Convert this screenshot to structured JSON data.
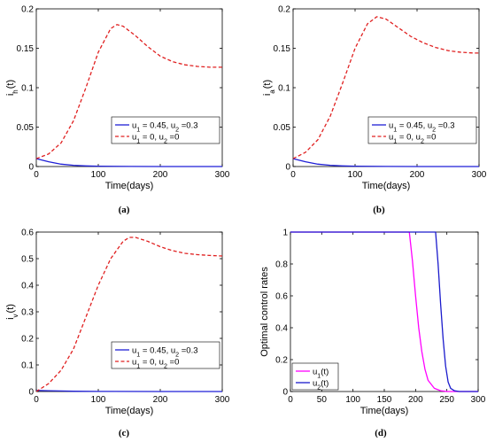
{
  "colors": {
    "controlled": "#1f1fd6",
    "uncontrolled": "#e02020",
    "u1": "#ff00ff",
    "u2": "#1a1acc",
    "axis": "#000000"
  },
  "chart_data": [
    {
      "id": "a",
      "caption": "(a)",
      "type": "line",
      "ylabel_main": "i",
      "ylabel_sub": "h",
      "ylabel_tail": "(t)",
      "xlabel": "Time(days)",
      "xlim": [
        0,
        300
      ],
      "ylim": [
        0,
        0.2
      ],
      "xticks": [
        0,
        100,
        200,
        300
      ],
      "yticks": [
        0,
        0.05,
        0.1,
        0.15,
        0.2
      ],
      "ytick_labels": [
        "0",
        "0.05",
        "0.1",
        "0.15",
        "0.2"
      ],
      "legend_position": "lower-right",
      "series": [
        {
          "label": "u₁ = 0.45, u₂ =0.3",
          "legend_text": "u_1 = 0.45, u_2 =0.3",
          "color": "#1f1fd6",
          "dash": "solid",
          "x": [
            0,
            20,
            40,
            60,
            80,
            100,
            150,
            200,
            300
          ],
          "y": [
            0.01,
            0.006,
            0.003,
            0.0015,
            0.0008,
            0.0004,
            0.0001,
            0,
            0
          ]
        },
        {
          "label": "u₁ = 0, u₂ =0",
          "legend_text": "u_1 = 0, u_2 =0",
          "color": "#e02020",
          "dash": "dashed",
          "x": [
            0,
            20,
            40,
            60,
            80,
            100,
            120,
            130,
            140,
            160,
            180,
            200,
            220,
            240,
            260,
            280,
            300
          ],
          "y": [
            0.01,
            0.016,
            0.03,
            0.058,
            0.1,
            0.145,
            0.175,
            0.18,
            0.178,
            0.166,
            0.152,
            0.14,
            0.133,
            0.129,
            0.127,
            0.126,
            0.126
          ]
        }
      ]
    },
    {
      "id": "b",
      "caption": "(b)",
      "type": "line",
      "ylabel_main": "i",
      "ylabel_sub": "a",
      "ylabel_tail": "(t)",
      "xlabel": "Time(days)",
      "xlim": [
        0,
        300
      ],
      "ylim": [
        0,
        0.2
      ],
      "xticks": [
        0,
        100,
        200,
        300
      ],
      "yticks": [
        0,
        0.05,
        0.1,
        0.15,
        0.2
      ],
      "ytick_labels": [
        "0",
        "0.05",
        "0.1",
        "0.15",
        "0.2"
      ],
      "legend_position": "lower-right",
      "series": [
        {
          "label": "u₁ = 0.45, u₂ =0.3",
          "legend_text": "u_1 = 0.45, u_2 =0.3",
          "color": "#1f1fd6",
          "dash": "solid",
          "x": [
            0,
            20,
            40,
            60,
            80,
            100,
            150,
            200,
            300
          ],
          "y": [
            0.01,
            0.006,
            0.003,
            0.0015,
            0.0008,
            0.0004,
            0.0001,
            0,
            0
          ]
        },
        {
          "label": "u₁ = 0, u₂ =0",
          "legend_text": "u_1 = 0, u_2 =0",
          "color": "#e02020",
          "dash": "dashed",
          "x": [
            0,
            20,
            40,
            60,
            80,
            100,
            120,
            135,
            150,
            170,
            190,
            210,
            230,
            250,
            270,
            290,
            300
          ],
          "y": [
            0.01,
            0.018,
            0.034,
            0.064,
            0.106,
            0.15,
            0.181,
            0.19,
            0.187,
            0.176,
            0.165,
            0.157,
            0.151,
            0.147,
            0.145,
            0.144,
            0.144
          ]
        }
      ]
    },
    {
      "id": "c",
      "caption": "(c)",
      "type": "line",
      "ylabel_main": "i",
      "ylabel_sub": "v",
      "ylabel_tail": "(t)",
      "xlabel": "Time(days)",
      "xlim": [
        0,
        300
      ],
      "ylim": [
        0,
        0.6
      ],
      "xticks": [
        0,
        100,
        200,
        300
      ],
      "yticks": [
        0,
        0.1,
        0.2,
        0.3,
        0.4,
        0.5,
        0.6
      ],
      "ytick_labels": [
        "0",
        "0.1",
        "0.2",
        "0.3",
        "0.4",
        "0.5",
        "0.6"
      ],
      "legend_position": "lower-right",
      "series": [
        {
          "label": "u₁ = 0.45, u₂ =0.3",
          "legend_text": "u_1 = 0.45, u_2 =0.3",
          "color": "#1f1fd6",
          "dash": "solid",
          "x": [
            0,
            20,
            40,
            60,
            100,
            200,
            300
          ],
          "y": [
            0.004,
            0.003,
            0.002,
            0.001,
            0.0005,
            0,
            0
          ]
        },
        {
          "label": "u₁ = 0, u₂ =0",
          "legend_text": "u_1 = 0, u_2 =0",
          "color": "#e02020",
          "dash": "dashed",
          "x": [
            0,
            20,
            40,
            60,
            80,
            100,
            120,
            140,
            150,
            160,
            180,
            200,
            220,
            240,
            260,
            280,
            300
          ],
          "y": [
            0.0,
            0.03,
            0.08,
            0.16,
            0.28,
            0.4,
            0.5,
            0.565,
            0.58,
            0.58,
            0.565,
            0.545,
            0.53,
            0.52,
            0.515,
            0.512,
            0.51
          ]
        }
      ]
    },
    {
      "id": "d",
      "caption": "(d)",
      "type": "line",
      "ylabel": "Optimal control rates",
      "xlabel": "Time(days)",
      "xlim": [
        0,
        300
      ],
      "ylim": [
        0,
        1
      ],
      "xticks": [
        0,
        50,
        100,
        150,
        200,
        250,
        300
      ],
      "yticks": [
        0,
        0.2,
        0.4,
        0.6,
        0.8,
        1
      ],
      "ytick_labels": [
        "0",
        "0.2",
        "0.4",
        "0.6",
        "0.8",
        "1"
      ],
      "legend_position": "lower-left",
      "series": [
        {
          "label": "u₁(t)",
          "legend_text": "u_1(t)",
          "color": "#ff00ff",
          "dash": "solid",
          "x": [
            0,
            190,
            195,
            200,
            205,
            210,
            215,
            220,
            230,
            240,
            250,
            300
          ],
          "y": [
            1,
            1,
            0.82,
            0.6,
            0.4,
            0.25,
            0.14,
            0.07,
            0.02,
            0.005,
            0,
            0
          ]
        },
        {
          "label": "u₂(t)",
          "legend_text": "u_2(t)",
          "color": "#1a1acc",
          "dash": "solid",
          "x": [
            0,
            232,
            236,
            240,
            244,
            248,
            252,
            256,
            262,
            270,
            300
          ],
          "y": [
            1,
            1,
            0.8,
            0.55,
            0.33,
            0.16,
            0.06,
            0.02,
            0.005,
            0,
            0
          ]
        }
      ]
    }
  ]
}
